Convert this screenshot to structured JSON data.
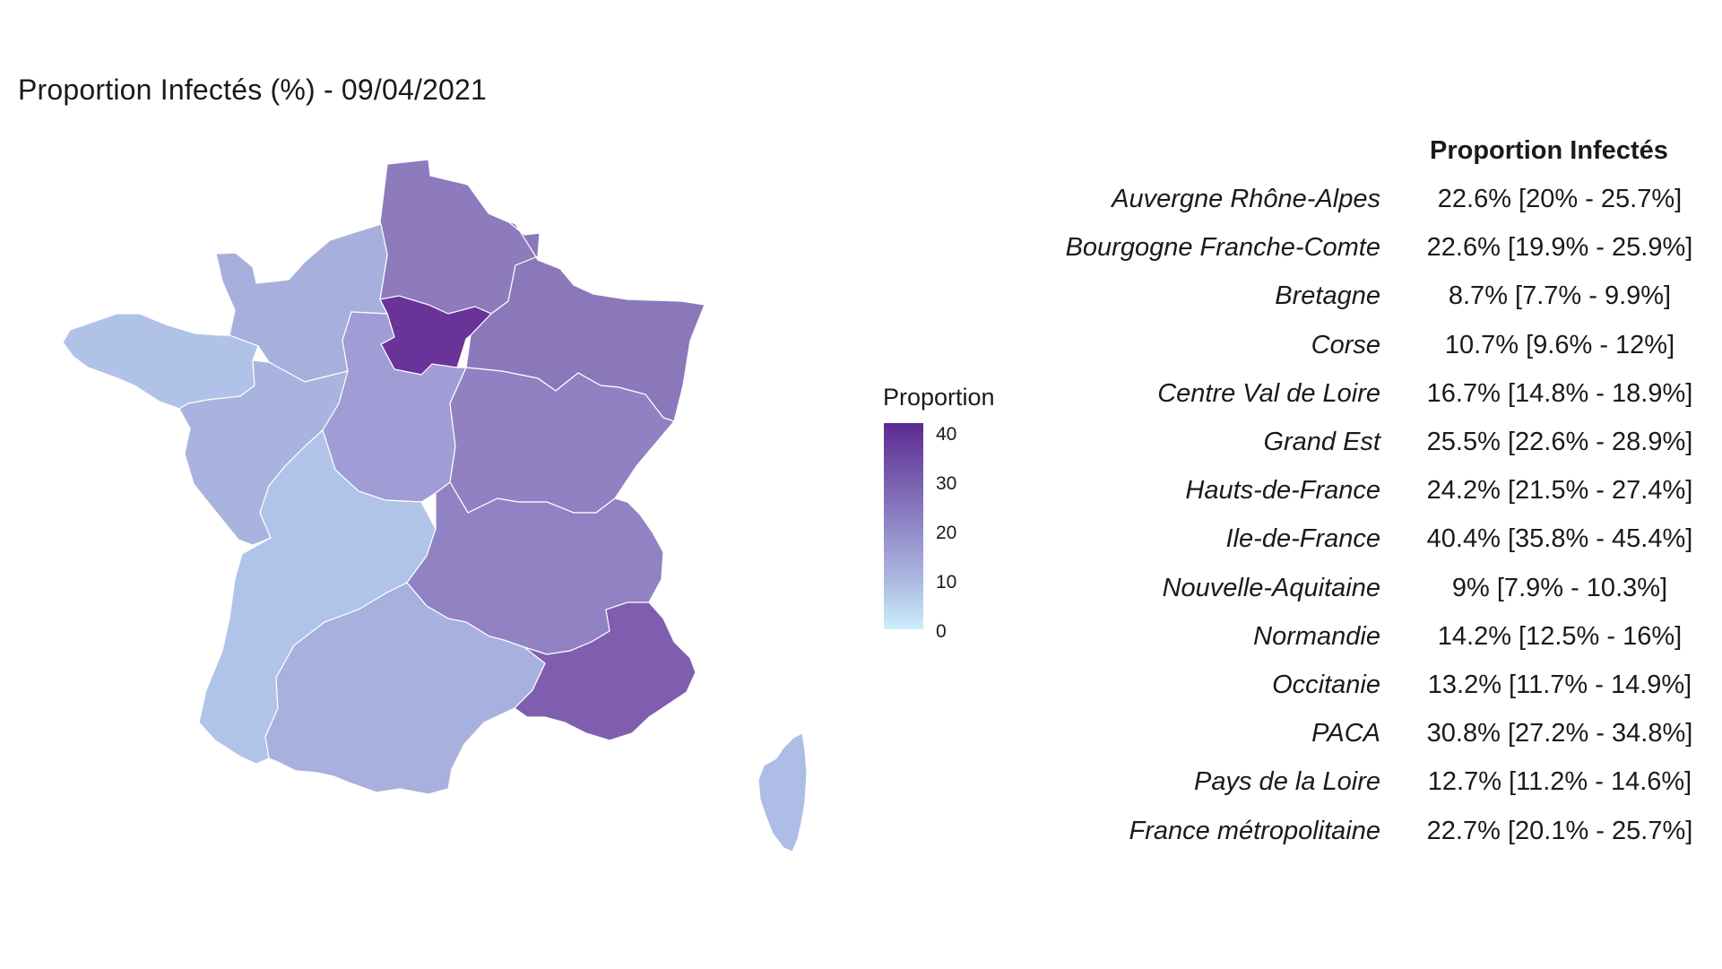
{
  "title": "Proportion Infectés (%) - 09/04/2021",
  "legend": {
    "title": "Proportion",
    "ticks": [
      "40",
      "30",
      "20",
      "10",
      "0"
    ],
    "colors": {
      "high": "#5c2a92",
      "mid": "#9b8bca",
      "low": "#b0c0e6",
      "zero": "#cdeffb"
    }
  },
  "table": {
    "header": "Proportion Infectés",
    "rows": [
      {
        "region": "Auvergne  Rhône-Alpes",
        "value": "22.6% [20% - 25.7%]"
      },
      {
        "region": "Bourgogne Franche-Comte",
        "value": "22.6% [19.9% - 25.9%]"
      },
      {
        "region": "Bretagne",
        "value": "8.7% [7.7% - 9.9%]"
      },
      {
        "region": "Corse",
        "value": "10.7% [9.6% - 12%]"
      },
      {
        "region": "Centre Val de Loire",
        "value": "16.7% [14.8% - 18.9%]"
      },
      {
        "region": "Grand Est",
        "value": "25.5% [22.6% - 28.9%]"
      },
      {
        "region": "Hauts-de-France",
        "value": "24.2% [21.5% - 27.4%]"
      },
      {
        "region": "Ile-de-France",
        "value": "40.4% [35.8% - 45.4%]"
      },
      {
        "region": "Nouvelle-Aquitaine",
        "value": "9% [7.9% - 10.3%]"
      },
      {
        "region": "Normandie",
        "value": "14.2% [12.5% - 16%]"
      },
      {
        "region": "Occitanie",
        "value": "13.2% [11.7% - 14.9%]"
      },
      {
        "region": "PACA",
        "value": "30.8% [27.2% - 34.8%]"
      },
      {
        "region": "Pays de la Loire",
        "value": "12.7% [11.2% - 14.6%]"
      },
      {
        "region": "France métropolitaine",
        "value": "22.7% [20.1% - 25.7%]"
      }
    ]
  },
  "map_regions": [
    {
      "key": "hauts-de-france",
      "proportion": 24.2,
      "color": "#8d7bbd"
    },
    {
      "key": "normandie",
      "proportion": 14.2,
      "color": "#a7b0dd"
    },
    {
      "key": "bretagne",
      "proportion": 8.7,
      "color": "#b0c2e8"
    },
    {
      "key": "ile-de-france",
      "proportion": 40.4,
      "color": "#6a3399"
    },
    {
      "key": "grand-est",
      "proportion": 25.5,
      "color": "#8a78bb"
    },
    {
      "key": "pays-de-la-loire",
      "proportion": 12.7,
      "color": "#a8b3df"
    },
    {
      "key": "centre-val-de-loire",
      "proportion": 16.7,
      "color": "#a09cd5"
    },
    {
      "key": "bourgogne-franche-comte",
      "proportion": 22.6,
      "color": "#9180c2"
    },
    {
      "key": "nouvelle-aquitaine",
      "proportion": 9.0,
      "color": "#b0c3e8"
    },
    {
      "key": "auvergne-rhone-alpes",
      "proportion": 22.6,
      "color": "#9182c3"
    },
    {
      "key": "occitanie",
      "proportion": 13.2,
      "color": "#a8b0dd"
    },
    {
      "key": "paca",
      "proportion": 30.8,
      "color": "#7f5eb0"
    },
    {
      "key": "corse",
      "proportion": 10.7,
      "color": "#adbde6"
    }
  ]
}
